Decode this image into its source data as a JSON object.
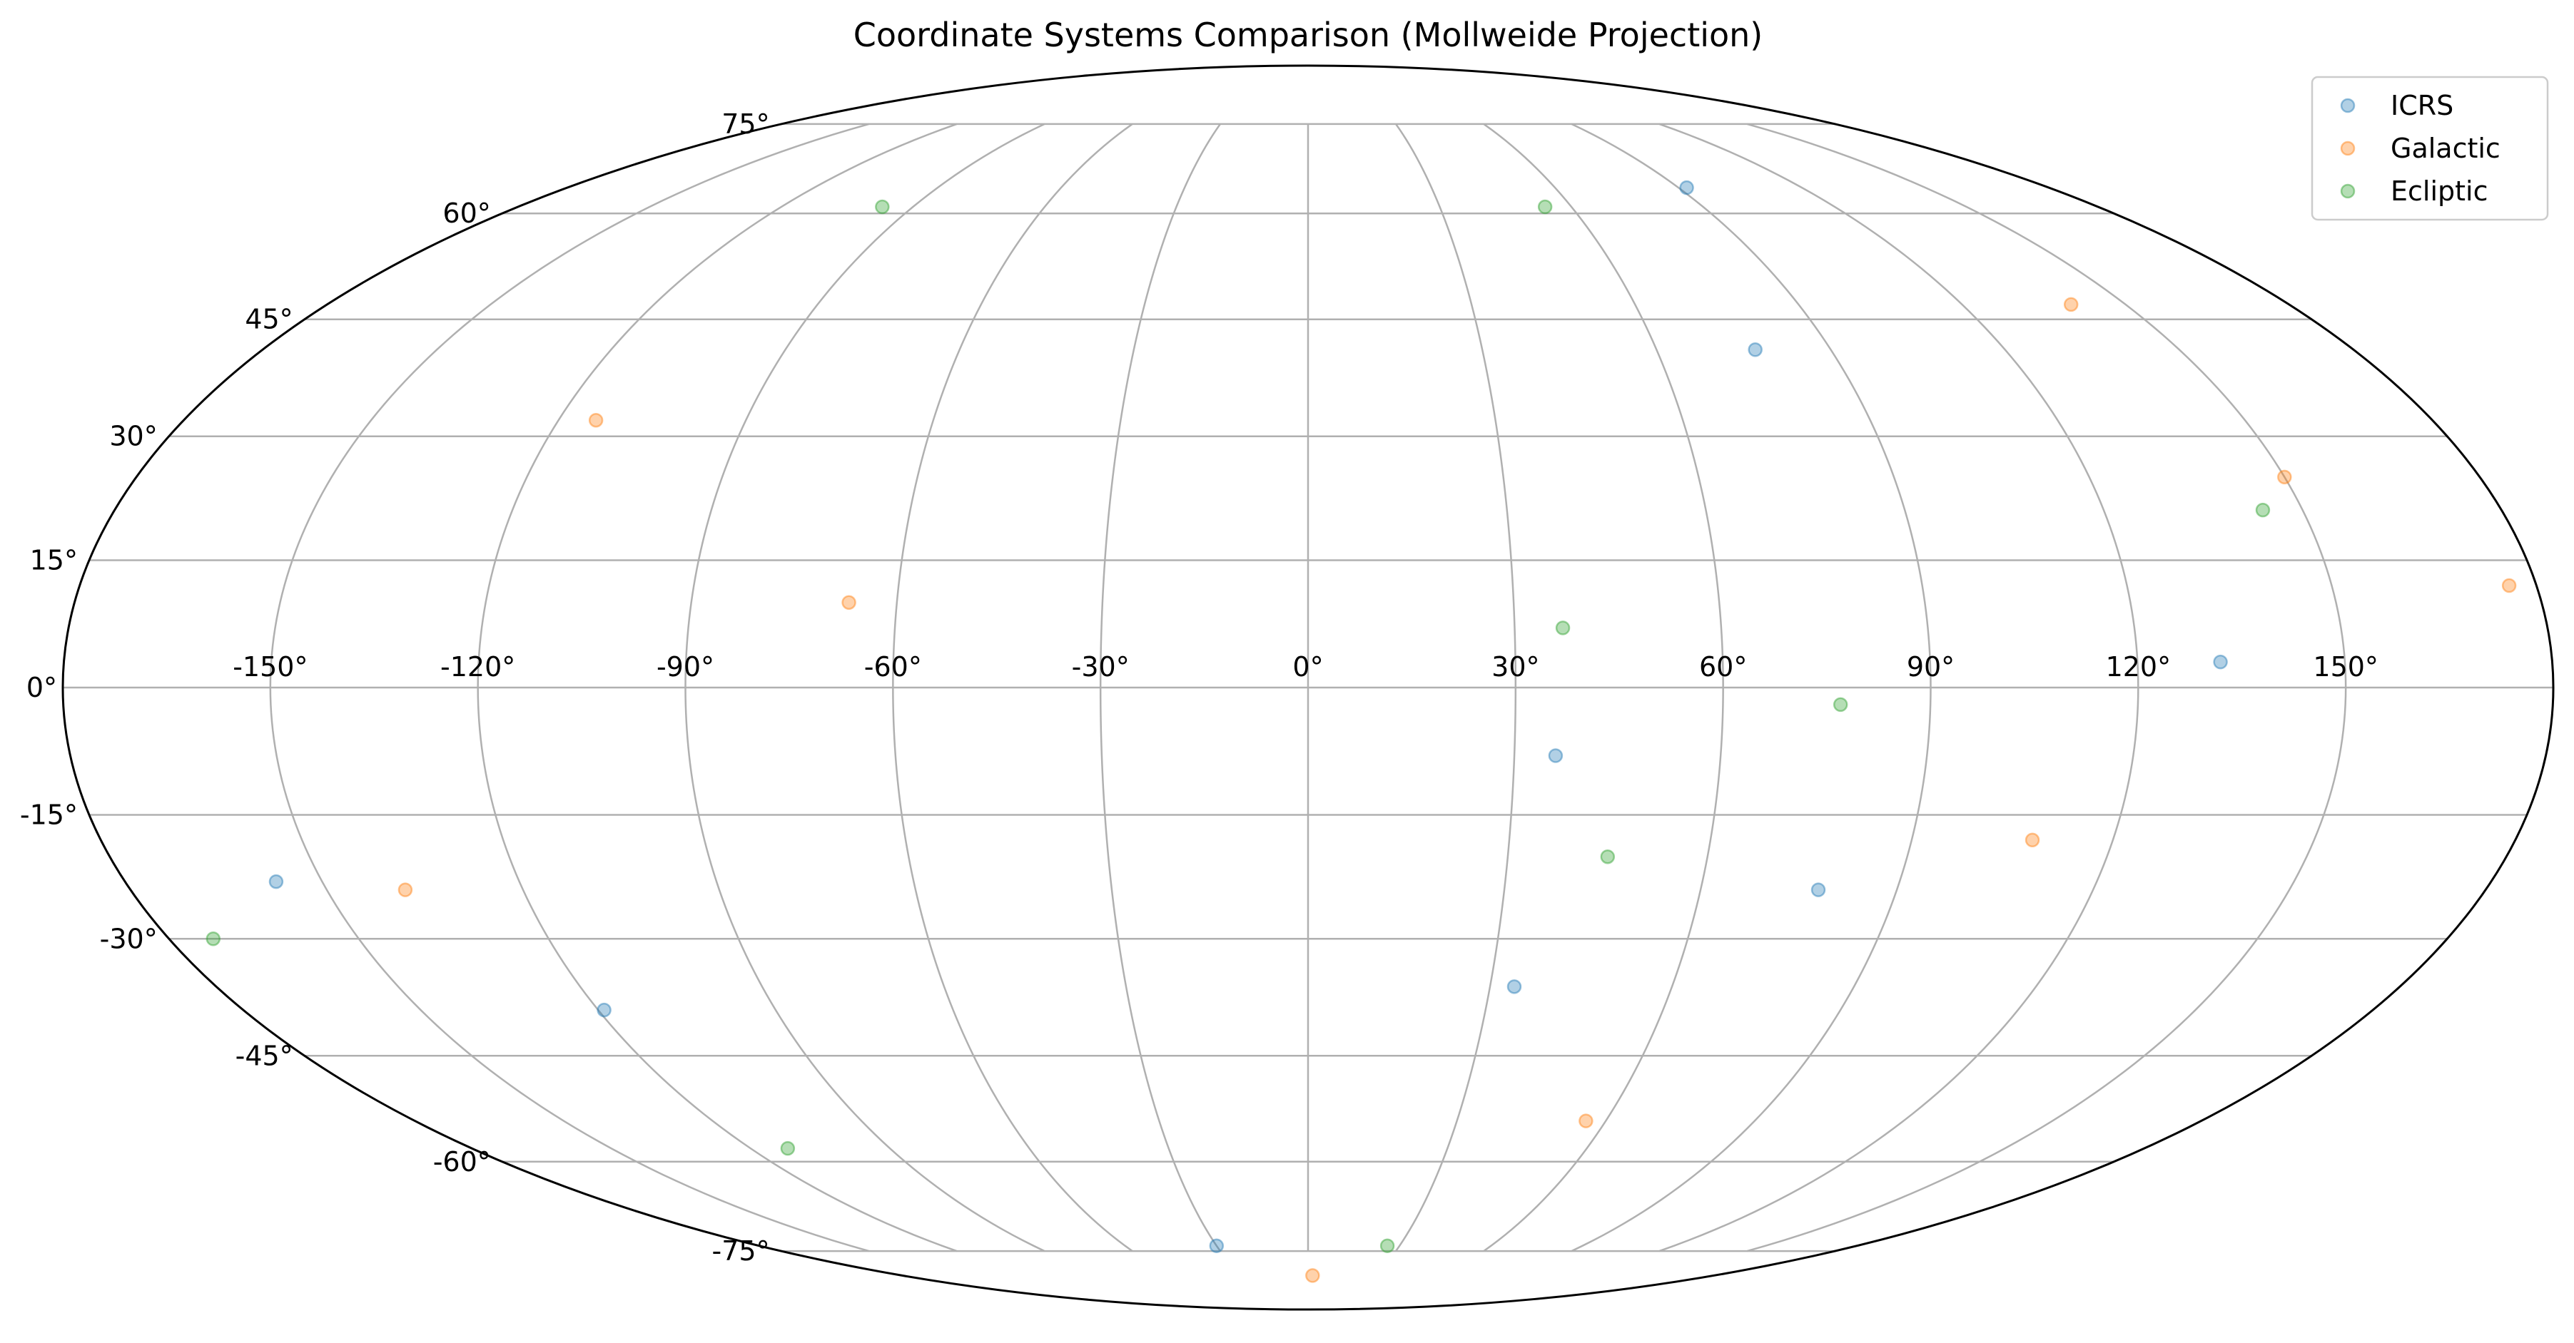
{
  "chart_data": {
    "type": "scatter",
    "projection": "mollweide",
    "title": "Coordinate Systems Comparison (Mollweide Projection)",
    "xlabel": "",
    "ylabel": "",
    "xlim": [
      -180,
      180
    ],
    "ylim": [
      -90,
      90
    ],
    "grid": true,
    "legend_position": "top-right",
    "lon_ticks": [
      {
        "value": -150,
        "label": "-150°"
      },
      {
        "value": -120,
        "label": "-120°"
      },
      {
        "value": -90,
        "label": "-90°"
      },
      {
        "value": -60,
        "label": "-60°"
      },
      {
        "value": -30,
        "label": "-30°"
      },
      {
        "value": 0,
        "label": "0°"
      },
      {
        "value": 30,
        "label": "30°"
      },
      {
        "value": 60,
        "label": "60°"
      },
      {
        "value": 90,
        "label": "90°"
      },
      {
        "value": 120,
        "label": "120°"
      },
      {
        "value": 150,
        "label": "150°"
      }
    ],
    "lat_ticks": [
      {
        "value": 75,
        "label": "75°"
      },
      {
        "value": 60,
        "label": "60°"
      },
      {
        "value": 45,
        "label": "45°"
      },
      {
        "value": 30,
        "label": "30°"
      },
      {
        "value": 15,
        "label": "15°"
      },
      {
        "value": 0,
        "label": "0°"
      },
      {
        "value": -15,
        "label": "-15°"
      },
      {
        "value": -30,
        "label": "-30°"
      },
      {
        "value": -45,
        "label": "-45°"
      },
      {
        "value": -60,
        "label": "-60°"
      },
      {
        "value": -75,
        "label": "-75°"
      }
    ],
    "series": [
      {
        "name": "ICRS",
        "color": "#1f77b4",
        "points": [
          {
            "lon": 92,
            "lat": 64
          },
          {
            "lon": 77,
            "lat": 41
          },
          {
            "lon": 132,
            "lat": 3
          },
          {
            "lon": 36,
            "lat": -8
          },
          {
            "lon": 78,
            "lat": -24
          },
          {
            "lon": 34,
            "lat": -36
          },
          {
            "lon": -157,
            "lat": -23
          },
          {
            "lon": -119,
            "lat": -39
          },
          {
            "lon": -30,
            "lat": -74
          }
        ]
      },
      {
        "name": "Galactic",
        "color": "#ff7f0e",
        "points": [
          {
            "lon": 140,
            "lat": 47
          },
          {
            "lon": -114,
            "lat": 32
          },
          {
            "lon": 150,
            "lat": 25
          },
          {
            "lon": 176,
            "lat": 12
          },
          {
            "lon": -67,
            "lat": 10
          },
          {
            "lon": 108,
            "lat": -18
          },
          {
            "lon": -138,
            "lat": -24
          },
          {
            "lon": 56,
            "lat": -54
          },
          {
            "lon": 2,
            "lat": -80
          }
        ]
      },
      {
        "name": "Ecliptic",
        "color": "#2ca02c",
        "points": [
          {
            "lon": -97,
            "lat": 61
          },
          {
            "lon": 54,
            "lat": 61
          },
          {
            "lon": 144,
            "lat": 21
          },
          {
            "lon": 37,
            "lat": 7
          },
          {
            "lon": 77,
            "lat": -2
          },
          {
            "lon": 45,
            "lat": -20
          },
          {
            "lon": -173,
            "lat": -30
          },
          {
            "lon": -112,
            "lat": -58
          },
          {
            "lon": 26,
            "lat": -74
          }
        ]
      }
    ]
  }
}
